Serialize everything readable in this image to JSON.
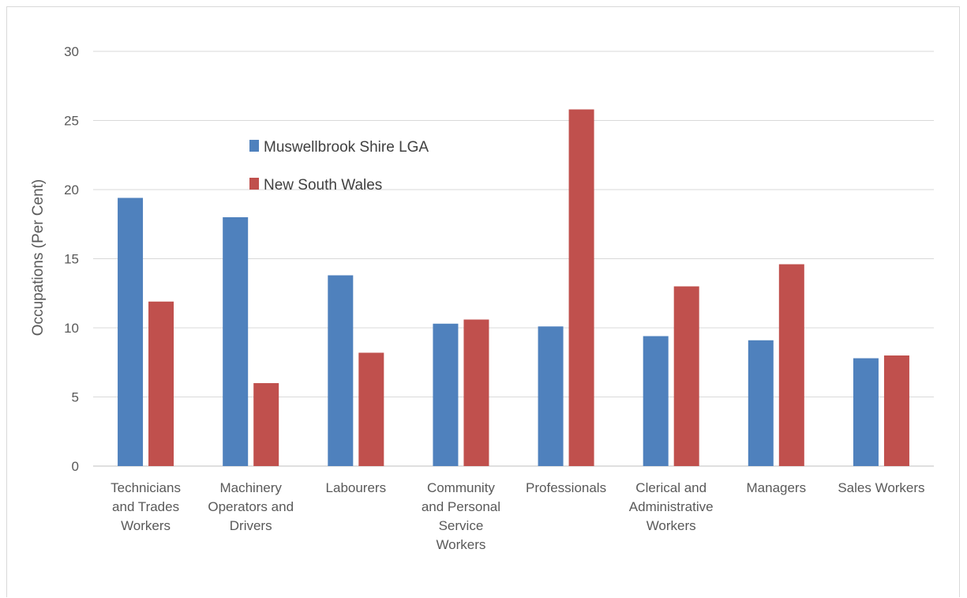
{
  "chart_data": {
    "type": "bar",
    "title": "",
    "xlabel": "",
    "ylabel": "Occupations (Per Cent)",
    "ylim": [
      0,
      30
    ],
    "yticks": [
      0,
      5,
      10,
      15,
      20,
      25,
      30
    ],
    "grid": true,
    "legend_position": "top-left-inside",
    "categories": [
      [
        "Technicians",
        "and Trades",
        "Workers"
      ],
      [
        "Machinery",
        "Operators and",
        "Drivers"
      ],
      [
        "Labourers"
      ],
      [
        "Community",
        "and Personal",
        "Service",
        "Workers"
      ],
      [
        "Professionals"
      ],
      [
        "Clerical and",
        "Administrative",
        "Workers"
      ],
      [
        "Managers"
      ],
      [
        "Sales Workers"
      ]
    ],
    "series": [
      {
        "name": "Muswellbrook Shire LGA",
        "color": "#4f81bd",
        "values": [
          19.4,
          18.0,
          13.8,
          10.3,
          10.1,
          9.4,
          9.1,
          7.8
        ]
      },
      {
        "name": "New South Wales",
        "color": "#c0504d",
        "values": [
          11.9,
          6.0,
          8.2,
          10.6,
          25.8,
          13.0,
          14.6,
          8.0
        ]
      }
    ]
  }
}
